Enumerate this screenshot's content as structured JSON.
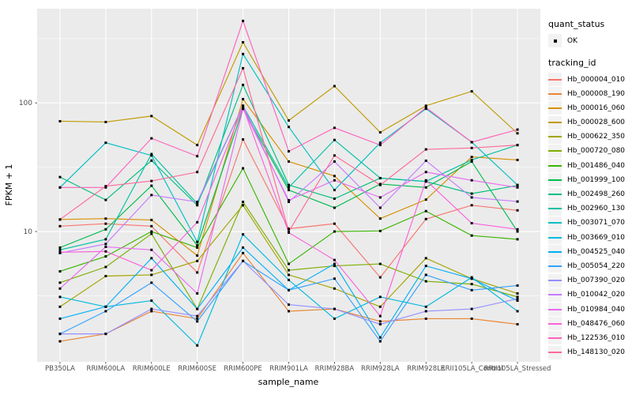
{
  "style": {
    "panel_bg": "#EBEBEB",
    "grid_color": "#FFFFFF",
    "axis_text_color": "#4D4D4D",
    "tick_mark_color": "#333333",
    "point_color": "#000000",
    "legend_key_bg": "#F2F2F2"
  },
  "legend": {
    "quant_status_title": "quant_status",
    "quant_status_items": [
      {
        "label": "OK",
        "marker": "black-point"
      }
    ],
    "tracking_id_title": "tracking_id"
  },
  "chart_data": {
    "type": "line",
    "title": "",
    "xlabel": "sample_name",
    "ylabel": "FPKM + 1",
    "y_scale": "log10",
    "grid": true,
    "legend_position": "right",
    "ylim": [
      0.97,
      540
    ],
    "y_ticks": [
      10,
      100
    ],
    "y_minor_gridlines": [
      3.162,
      31.62,
      316.2
    ],
    "categories": [
      "PB350LA",
      "RRIM600LA",
      "RRIM600LE",
      "RRIM600SE",
      "RRIM600PE",
      "RRIM901LA",
      "RRIM928BA",
      "RRIM928LA",
      "RRIM928LE",
      "RRII105LA_Control",
      "RRII105LA_Stressed"
    ],
    "series": [
      {
        "name": "Hb_000004_010",
        "color": "#F8766D",
        "values": [
          11,
          11.5,
          11,
          4.8,
          52,
          10.5,
          11.5,
          4.4,
          12.5,
          16,
          14.6
        ]
      },
      {
        "name": "Hb_000008_190",
        "color": "#EA8331",
        "values": [
          1.4,
          1.6,
          2.4,
          2.1,
          6.8,
          2.4,
          2.5,
          2.0,
          2.1,
          2.1,
          1.9
        ]
      },
      {
        "name": "Hb_000016_060",
        "color": "#D89000",
        "values": [
          12.4,
          12.6,
          12.3,
          6.5,
          107,
          35,
          27,
          12.6,
          17.7,
          38,
          36
        ]
      },
      {
        "name": "Hb_000028_600",
        "color": "#C09B00",
        "values": [
          72,
          71,
          79,
          47,
          296,
          73,
          135,
          59,
          95,
          123,
          58
        ]
      },
      {
        "name": "Hb_000622_350",
        "color": "#A3A500",
        "values": [
          2.6,
          4.5,
          4.6,
          5.9,
          16,
          4.6,
          3.6,
          2.6,
          6.2,
          4.3,
          3.3
        ]
      },
      {
        "name": "Hb_000720_080",
        "color": "#7CAE00",
        "values": [
          4.0,
          5.3,
          9.6,
          2.5,
          17,
          5.0,
          5.4,
          5.6,
          4.1,
          3.9,
          3.1
        ]
      },
      {
        "name": "Hb_001486_040",
        "color": "#39B600",
        "values": [
          4.9,
          6.4,
          10,
          7.5,
          31,
          5.6,
          10,
          10.1,
          14.4,
          9.3,
          8.7
        ]
      },
      {
        "name": "Hb_001999_100",
        "color": "#00BB4E",
        "values": [
          7.5,
          10.4,
          22.7,
          7.8,
          90,
          21,
          15.3,
          23.4,
          22,
          35,
          10
        ]
      },
      {
        "name": "Hb_002498_260",
        "color": "#00BF7D",
        "values": [
          26.5,
          17.6,
          35.6,
          16,
          138,
          23,
          18,
          26,
          24.5,
          19.7,
          22.8
        ]
      },
      {
        "name": "Hb_002960_130",
        "color": "#00C1A3",
        "values": [
          7.2,
          8.7,
          40,
          16.5,
          95,
          22,
          51.5,
          26,
          24.5,
          36,
          47
        ]
      },
      {
        "name": "Hb_003071_070",
        "color": "#00BFC4",
        "values": [
          22,
          49,
          39,
          8.3,
          240,
          65,
          21,
          49,
          90,
          49.5,
          23
        ]
      },
      {
        "name": "Hb_003669_010",
        "color": "#00BAE0",
        "values": [
          3.1,
          2.6,
          2.9,
          1.3,
          9.5,
          4.2,
          2.1,
          3.1,
          2.6,
          4.4,
          2.4
        ]
      },
      {
        "name": "Hb_004525_040",
        "color": "#00B0F6",
        "values": [
          2.1,
          2.6,
          6.2,
          2.5,
          7.5,
          3.5,
          5.6,
          1.5,
          5.4,
          4.3,
          2.9
        ]
      },
      {
        "name": "Hb_005054_220",
        "color": "#35A2FF",
        "values": [
          1.6,
          2.4,
          4.0,
          2.0,
          5.9,
          3.5,
          4.3,
          1.4,
          4.6,
          3.5,
          3.8
        ]
      },
      {
        "name": "Hb_007390_020",
        "color": "#9590FF",
        "values": [
          1.6,
          1.6,
          2.5,
          2.2,
          5.9,
          2.7,
          2.5,
          1.9,
          2.4,
          2.5,
          3.0
        ]
      },
      {
        "name": "Hb_010042_020",
        "color": "#C77CFF",
        "values": [
          6.8,
          8.0,
          19.2,
          17,
          95,
          17,
          35,
          15.3,
          35.5,
          18.4,
          17.1
        ]
      },
      {
        "name": "Hb_010984_040",
        "color": "#E76BF3",
        "values": [
          3.6,
          7.6,
          7.2,
          3.3,
          90,
          17.5,
          25,
          18.4,
          29,
          25,
          22
        ]
      },
      {
        "name": "Hb_048476_060",
        "color": "#FA62DB",
        "values": [
          6.9,
          7.0,
          5.0,
          11.8,
          93,
          9.8,
          6.0,
          2.2,
          25,
          11.6,
          10.4
        ]
      },
      {
        "name": "Hb_122536_010",
        "color": "#FF62BC",
        "values": [
          22,
          22,
          53,
          38.5,
          434,
          42,
          64,
          47,
          92,
          49.5,
          62
        ]
      },
      {
        "name": "Hb_148130_020",
        "color": "#FF6A98",
        "values": [
          12.4,
          22.5,
          24.7,
          29,
          186,
          10,
          39,
          23,
          43.5,
          44.6,
          47
        ]
      }
    ]
  }
}
